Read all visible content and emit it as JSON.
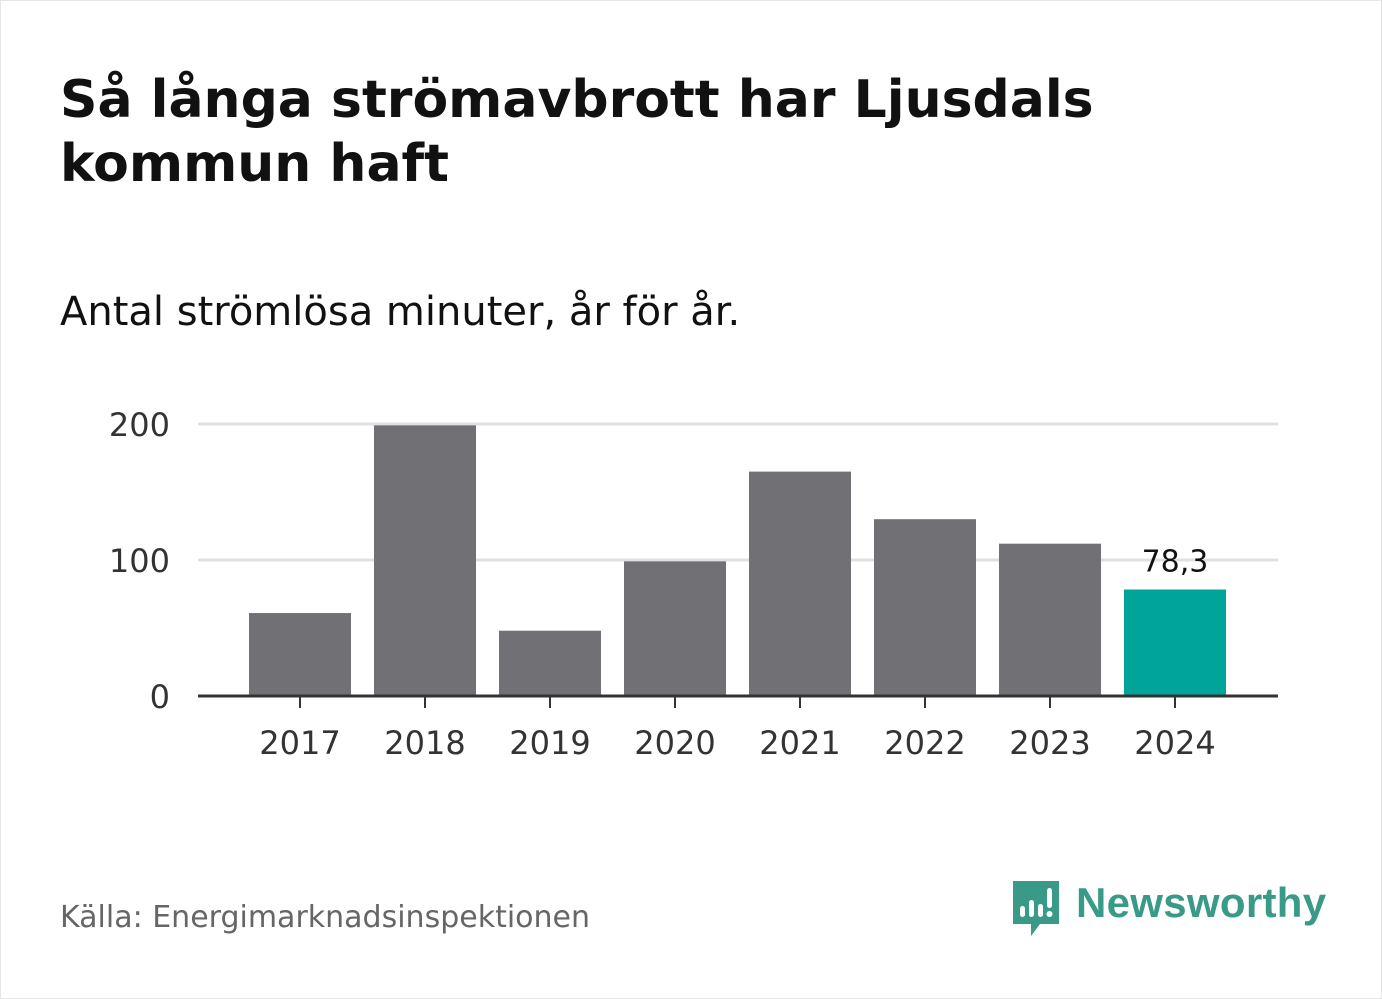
{
  "header": {
    "title": "Så långa strömavbrott har Ljusdals kommun haft",
    "subtitle": "Antal strömlösa minuter, år för år."
  },
  "footer": {
    "source": "Källa: Energimarknadsinspektionen",
    "logo_text": "Newsworthy",
    "logo_icon": "newsworthy-logo-icon"
  },
  "colors": {
    "bar": "#707075",
    "highlight": "#00a498",
    "grid": "#e0e0e0",
    "axis": "#333333",
    "brand": "#3a9a88"
  },
  "chart_data": {
    "type": "bar",
    "title": "Så långa strömavbrott har Ljusdals kommun haft",
    "subtitle": "Antal strömlösa minuter, år för år.",
    "xlabel": "",
    "ylabel": "",
    "categories": [
      "2017",
      "2018",
      "2019",
      "2020",
      "2021",
      "2022",
      "2023",
      "2024"
    ],
    "values": [
      61,
      199,
      48,
      99,
      165,
      130,
      112,
      78.3
    ],
    "ylim": [
      0,
      200
    ],
    "yticks": [
      0,
      100,
      200
    ],
    "ytick_labels": [
      "0",
      "100",
      "200"
    ],
    "grid": true,
    "highlight_index": 7,
    "data_labels": [
      {
        "index": 7,
        "text": "78,3"
      }
    ]
  }
}
